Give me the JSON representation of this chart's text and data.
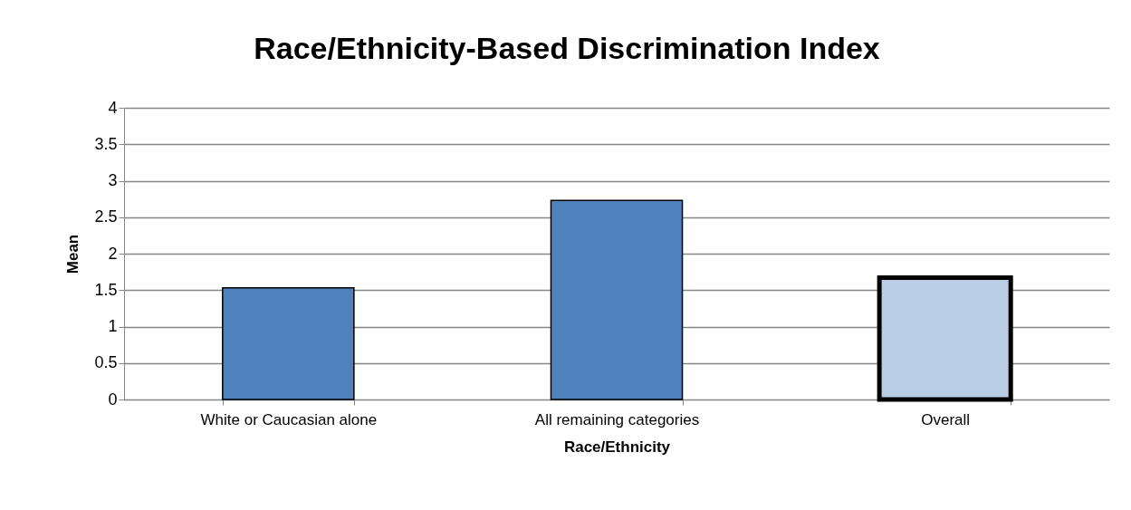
{
  "chart_data": {
    "type": "bar",
    "title": "Race/Ethnicity-Based Discrimination Index",
    "xlabel": "Race/Ethnicity",
    "ylabel": "Mean",
    "categories": [
      "White or Caucasian alone",
      "All remaining categories",
      "Overall"
    ],
    "values": [
      1.53,
      2.73,
      1.67
    ],
    "colors": [
      "#4f81bd",
      "#4f81bd",
      "#b9cde5"
    ],
    "ylim": [
      0,
      4
    ],
    "yticks": [
      0,
      0.5,
      1,
      1.5,
      2,
      2.5,
      3,
      3.5,
      4
    ],
    "grid": "y",
    "legend": false
  }
}
